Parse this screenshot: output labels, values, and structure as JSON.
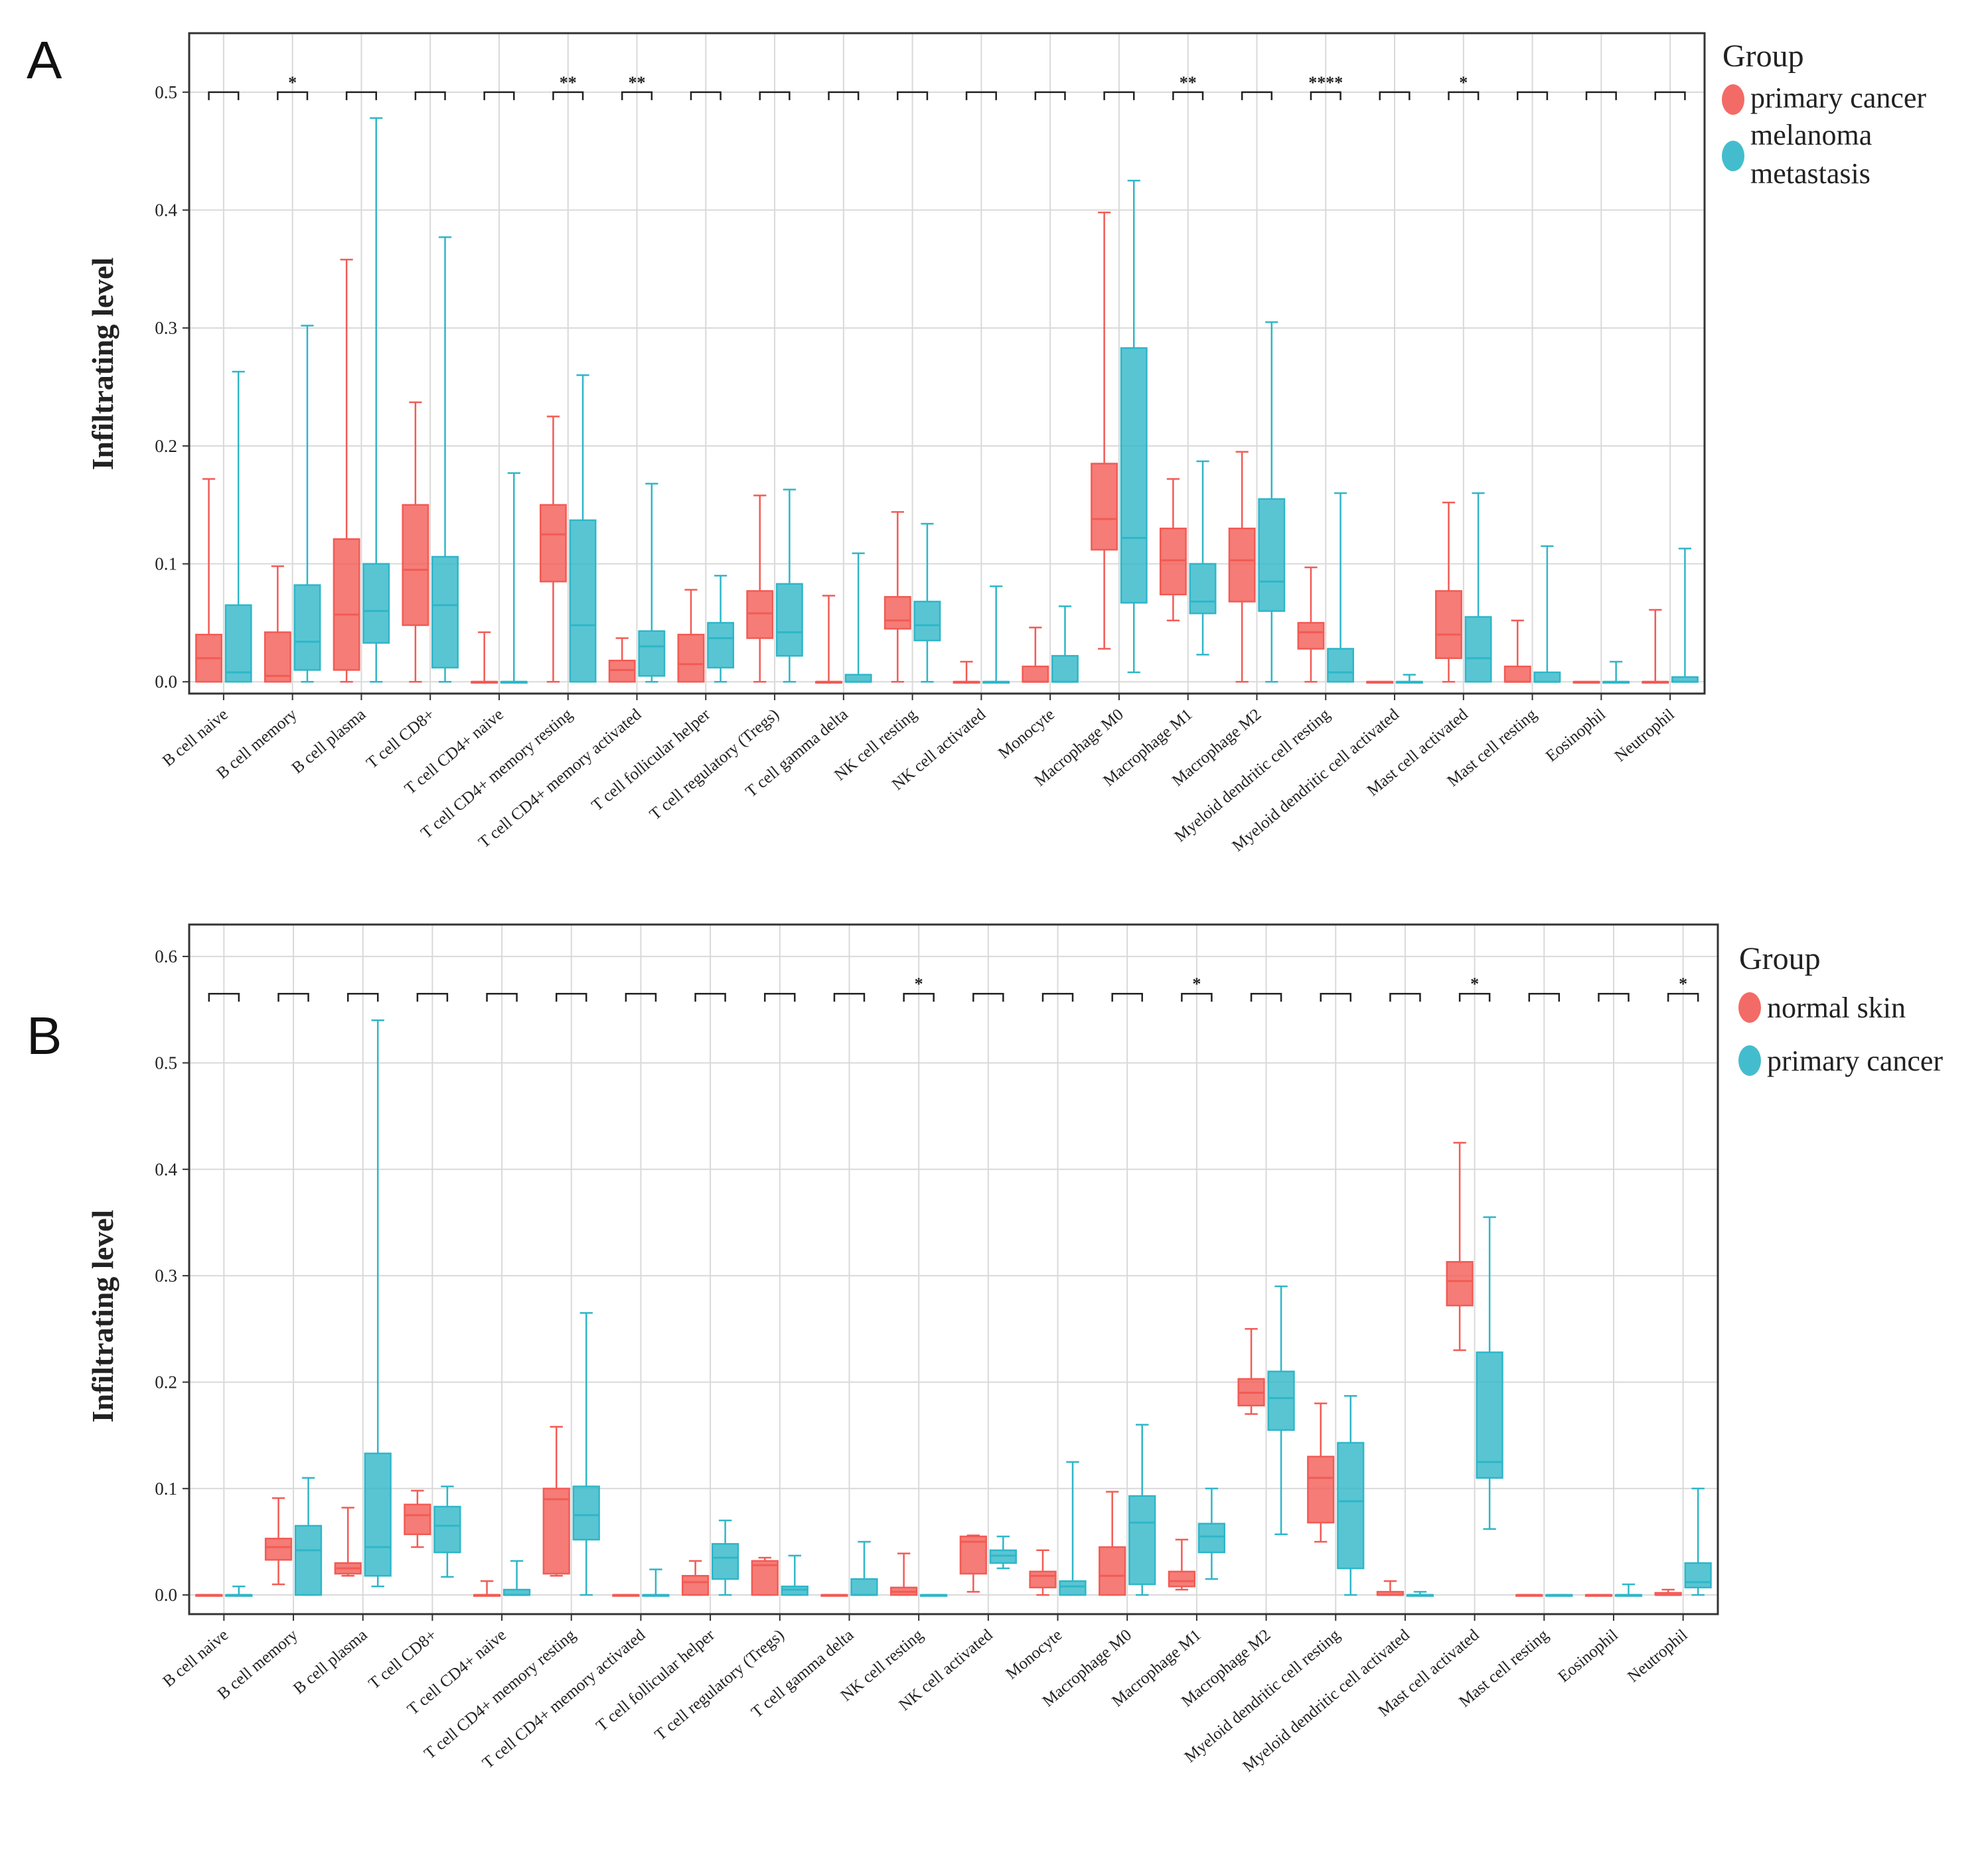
{
  "chart_data": [
    {
      "panel": "A",
      "type": "box",
      "ylabel": "Infiltrating level",
      "ylim": [
        -0.01,
        0.55
      ],
      "yticks": [
        "0.0",
        "0.1",
        "0.2",
        "0.3",
        "0.4",
        "0.5"
      ],
      "grid": true,
      "legend": {
        "title": "Group",
        "entries": [
          {
            "label": "primary cancer",
            "color": "#F25B55"
          },
          {
            "label": "melanoma metastasis",
            "color": "#2FB6C8",
            "lines": [
              "melanoma",
              "metastasis"
            ]
          }
        ],
        "position": "right"
      },
      "categories": [
        "B cell naive",
        "B cell memory",
        "B cell plasma",
        "T cell CD8+",
        "T cell CD4+ naive",
        "T cell CD4+ memory resting",
        "T cell CD4+ memory activated",
        "T cell follicular helper",
        "T cell regulatory (Tregs)",
        "T cell gamma delta",
        "NK cell resting",
        "NK cell activated",
        "Monocyte",
        "Macrophage M0",
        "Macrophage M1",
        "Macrophage M2",
        "Myeloid dendritic cell resting",
        "Myeloid dendritic cell activated",
        "Mast cell activated",
        "Mast cell resting",
        "Eosinophil",
        "Neutrophil"
      ],
      "significance": [
        "",
        "*",
        "",
        "",
        "",
        "**",
        "**",
        "",
        "",
        "",
        "",
        "",
        "",
        "",
        "**",
        "",
        "****",
        "",
        "*",
        "",
        "",
        ""
      ],
      "bracket_y": 0.5,
      "series": [
        {
          "name": "primary cancer",
          "boxes": [
            [
              0,
              0,
              0.02,
              0.04,
              0.172
            ],
            [
              0,
              0,
              0.005,
              0.042,
              0.098
            ],
            [
              0,
              0.01,
              0.057,
              0.121,
              0.358
            ],
            [
              0,
              0.048,
              0.095,
              0.15,
              0.237
            ],
            [
              0,
              0,
              0,
              0,
              0.042
            ],
            [
              0,
              0.085,
              0.125,
              0.15,
              0.225
            ],
            [
              0,
              0,
              0.01,
              0.018,
              0.037
            ],
            [
              0,
              0,
              0.015,
              0.04,
              0.078
            ],
            [
              0,
              0.037,
              0.058,
              0.077,
              0.158
            ],
            [
              0,
              0,
              0,
              0,
              0.073
            ],
            [
              0,
              0.045,
              0.052,
              0.072,
              0.144
            ],
            [
              0,
              0,
              0,
              0,
              0.017
            ],
            [
              0,
              0,
              0,
              0.013,
              0.046
            ],
            [
              0.028,
              0.112,
              0.138,
              0.185,
              0.398
            ],
            [
              0.052,
              0.074,
              0.103,
              0.13,
              0.172
            ],
            [
              0,
              0.068,
              0.103,
              0.13,
              0.195
            ],
            [
              0,
              0.028,
              0.042,
              0.05,
              0.097
            ],
            [
              0,
              0,
              0,
              0,
              0
            ],
            [
              0,
              0.02,
              0.04,
              0.077,
              0.152
            ],
            [
              0,
              0,
              0,
              0.013,
              0.052
            ],
            [
              0,
              0,
              0,
              0,
              0
            ],
            [
              0,
              0,
              0,
              0,
              0.061
            ]
          ]
        },
        {
          "name": "melanoma metastasis",
          "boxes": [
            [
              0,
              0,
              0.008,
              0.065,
              0.263
            ],
            [
              0,
              0.01,
              0.034,
              0.082,
              0.302
            ],
            [
              0,
              0.033,
              0.06,
              0.1,
              0.478
            ],
            [
              0,
              0.012,
              0.065,
              0.106,
              0.377
            ],
            [
              0,
              0,
              0,
              0,
              0.177
            ],
            [
              0,
              0,
              0.048,
              0.137,
              0.26
            ],
            [
              0,
              0.005,
              0.03,
              0.043,
              0.168
            ],
            [
              0,
              0.012,
              0.037,
              0.05,
              0.09
            ],
            [
              0,
              0.022,
              0.042,
              0.083,
              0.163
            ],
            [
              0,
              0,
              0,
              0.006,
              0.109
            ],
            [
              0,
              0.035,
              0.048,
              0.068,
              0.134
            ],
            [
              0,
              0,
              0,
              0,
              0.081
            ],
            [
              0,
              0,
              0,
              0.022,
              0.064
            ],
            [
              0.008,
              0.067,
              0.122,
              0.283,
              0.425
            ],
            [
              0.023,
              0.058,
              0.068,
              0.1,
              0.187
            ],
            [
              0,
              0.06,
              0.085,
              0.155,
              0.305
            ],
            [
              0,
              0,
              0.008,
              0.028,
              0.16
            ],
            [
              0,
              0,
              0,
              0,
              0.006
            ],
            [
              0,
              0,
              0.02,
              0.055,
              0.16
            ],
            [
              0,
              0,
              0,
              0.008,
              0.115
            ],
            [
              0,
              0,
              0,
              0,
              0.017
            ],
            [
              0,
              0,
              0,
              0.004,
              0.113
            ]
          ]
        }
      ]
    },
    {
      "panel": "B",
      "type": "box",
      "ylabel": "Infiltrating level",
      "ylim": [
        -0.018,
        0.63
      ],
      "yticks": [
        "0.0",
        "0.1",
        "0.2",
        "0.3",
        "0.4",
        "0.5",
        "0.6"
      ],
      "grid": true,
      "legend": {
        "title": "Group",
        "entries": [
          {
            "label": "normal skin",
            "color": "#F25B55"
          },
          {
            "label": "primary cancer",
            "color": "#2FB6C8"
          }
        ],
        "position": "right"
      },
      "categories": [
        "B cell naive",
        "B cell memory",
        "B cell plasma",
        "T cell CD8+",
        "T cell CD4+ naive",
        "T cell CD4+ memory resting",
        "T cell CD4+ memory activated",
        "T cell follicular helper",
        "T cell regulatory (Tregs)",
        "T cell gamma delta",
        "NK cell resting",
        "NK cell activated",
        "Monocyte",
        "Macrophage M0",
        "Macrophage M1",
        "Macrophage M2",
        "Myeloid dendritic cell resting",
        "Myeloid dendritic cell activated",
        "Mast cell activated",
        "Mast cell resting",
        "Eosinophil",
        "Neutrophil"
      ],
      "significance": [
        "",
        "",
        "",
        "",
        "",
        "",
        "",
        "",
        "",
        "",
        "*",
        "",
        "",
        "",
        "*",
        "",
        "",
        "",
        "*",
        "",
        "",
        "*"
      ],
      "bracket_y": 0.565,
      "series": [
        {
          "name": "normal skin",
          "boxes": [
            [
              0,
              0,
              0,
              0,
              0
            ],
            [
              0.01,
              0.033,
              0.045,
              0.053,
              0.091
            ],
            [
              0.018,
              0.02,
              0.025,
              0.03,
              0.082
            ],
            [
              0.045,
              0.057,
              0.075,
              0.085,
              0.098
            ],
            [
              0,
              0,
              0,
              0,
              0.013
            ],
            [
              0.018,
              0.02,
              0.09,
              0.1,
              0.158
            ],
            [
              0,
              0,
              0,
              0,
              0
            ],
            [
              0,
              0,
              0.012,
              0.018,
              0.032
            ],
            [
              0,
              0,
              0.028,
              0.032,
              0.035
            ],
            [
              0,
              0,
              0,
              0,
              0
            ],
            [
              0,
              0,
              0.003,
              0.007,
              0.039
            ],
            [
              0.003,
              0.02,
              0.05,
              0.055,
              0.056
            ],
            [
              0,
              0.007,
              0.018,
              0.022,
              0.042
            ],
            [
              0,
              0,
              0.018,
              0.045,
              0.097
            ],
            [
              0.005,
              0.008,
              0.013,
              0.022,
              0.052
            ],
            [
              0.17,
              0.178,
              0.19,
              0.203,
              0.25
            ],
            [
              0.05,
              0.068,
              0.11,
              0.13,
              0.18
            ],
            [
              0,
              0,
              0,
              0.003,
              0.013
            ],
            [
              0.23,
              0.272,
              0.295,
              0.313,
              0.425
            ],
            [
              0,
              0,
              0,
              0,
              0
            ],
            [
              0,
              0,
              0,
              0,
              0
            ],
            [
              0,
              0,
              0,
              0.002,
              0.005
            ]
          ]
        },
        {
          "name": "primary cancer",
          "boxes": [
            [
              0,
              0,
              0,
              0,
              0.008
            ],
            [
              0,
              0,
              0.042,
              0.065,
              0.11
            ],
            [
              0.008,
              0.018,
              0.045,
              0.133,
              0.54
            ],
            [
              0.017,
              0.04,
              0.065,
              0.083,
              0.102
            ],
            [
              0,
              0,
              0,
              0.005,
              0.032
            ],
            [
              0,
              0.052,
              0.075,
              0.102,
              0.265
            ],
            [
              0,
              0,
              0,
              0,
              0.024
            ],
            [
              0,
              0.015,
              0.035,
              0.048,
              0.07
            ],
            [
              0,
              0,
              0.005,
              0.008,
              0.037
            ],
            [
              0,
              0,
              0,
              0.015,
              0.05
            ],
            [
              0,
              0,
              0,
              0,
              0
            ],
            [
              0.025,
              0.03,
              0.037,
              0.042,
              0.055
            ],
            [
              0,
              0,
              0.008,
              0.013,
              0.125
            ],
            [
              0,
              0.01,
              0.068,
              0.093,
              0.16
            ],
            [
              0.015,
              0.04,
              0.055,
              0.067,
              0.1
            ],
            [
              0.057,
              0.155,
              0.185,
              0.21,
              0.29
            ],
            [
              0,
              0.025,
              0.088,
              0.143,
              0.187
            ],
            [
              0,
              0,
              0,
              0,
              0.003
            ],
            [
              0.062,
              0.11,
              0.125,
              0.228,
              0.355
            ],
            [
              0,
              0,
              0,
              0,
              0
            ],
            [
              0,
              0,
              0,
              0,
              0.01
            ],
            [
              0,
              0.007,
              0.012,
              0.03,
              0.1
            ]
          ]
        }
      ]
    }
  ]
}
